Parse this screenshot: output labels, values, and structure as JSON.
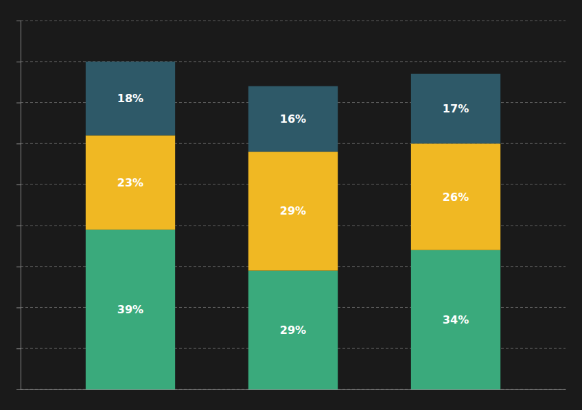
{
  "chart_data": {
    "type": "bar",
    "stacked": true,
    "categories": [
      null,
      null,
      null
    ],
    "series": [
      {
        "color": "#3aaa7c",
        "values": [
          39,
          29,
          34
        ],
        "value_labels": [
          "39%",
          "29%",
          "34%"
        ]
      },
      {
        "color": "#f0b823",
        "values": [
          23,
          29,
          26
        ],
        "value_labels": [
          "23%",
          "29%",
          "26%"
        ]
      },
      {
        "color": "#2e5968",
        "values": [
          18,
          16,
          17
        ],
        "value_labels": [
          "18%",
          "16%",
          "17%"
        ]
      }
    ],
    "ylim": [
      0,
      90
    ],
    "yticks": [
      0,
      10,
      20,
      30,
      40,
      50,
      60,
      70,
      80,
      90
    ],
    "grid": true,
    "data_labels": true,
    "tick_labels": false
  }
}
